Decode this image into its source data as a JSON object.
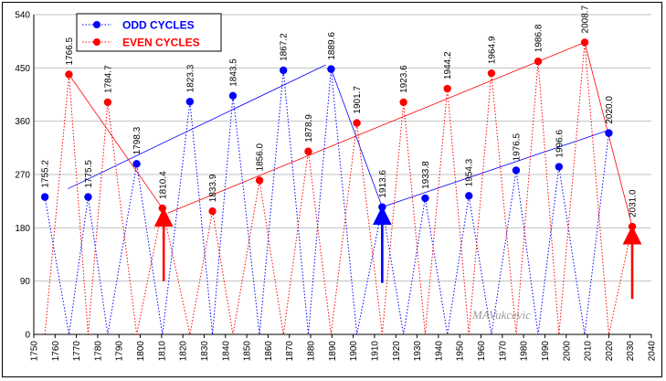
{
  "chart_data": {
    "type": "line",
    "title": "",
    "xlabel": "",
    "ylabel": "",
    "xlim": [
      1750,
      2040
    ],
    "ylim": [
      0,
      540
    ],
    "x_ticks": [
      1750,
      1760,
      1770,
      1780,
      1790,
      1800,
      1810,
      1820,
      1830,
      1840,
      1850,
      1860,
      1870,
      1880,
      1890,
      1900,
      1910,
      1920,
      1930,
      1940,
      1950,
      1960,
      1970,
      1980,
      1990,
      2000,
      2010,
      2020,
      2030,
      2040
    ],
    "y_ticks": [
      0,
      90,
      180,
      270,
      360,
      450,
      540
    ],
    "grid": "horizontal",
    "legend_position": "top-left",
    "series": [
      {
        "name": "ODD CYCLES",
        "color": "#0000ff",
        "points": [
          {
            "x": 1755.2,
            "y": 232,
            "label": "1755.2"
          },
          {
            "x": 1775.5,
            "y": 232,
            "label": "1775.5"
          },
          {
            "x": 1798.3,
            "y": 288,
            "label": "1798.3"
          },
          {
            "x": 1823.3,
            "y": 393,
            "label": "1823.3"
          },
          {
            "x": 1843.5,
            "y": 403,
            "label": "1843.5"
          },
          {
            "x": 1867.2,
            "y": 446,
            "label": "1867.2"
          },
          {
            "x": 1889.6,
            "y": 448,
            "label": "1889.6"
          },
          {
            "x": 1913.6,
            "y": 215,
            "label": "1913.6"
          },
          {
            "x": 1933.8,
            "y": 230,
            "label": "1933.8"
          },
          {
            "x": 1954.3,
            "y": 234,
            "label": "1954.3"
          },
          {
            "x": 1976.5,
            "y": 277,
            "label": "1976.5"
          },
          {
            "x": 1996.6,
            "y": 283,
            "label": "1996.6"
          },
          {
            "x": 2020.0,
            "y": 340,
            "label": "2020.0"
          }
        ],
        "zigzag_path": [
          [
            1755.2,
            232
          ],
          [
            1766.5,
            0
          ],
          [
            1775.5,
            232
          ],
          [
            1784.7,
            0
          ],
          [
            1798.3,
            288
          ],
          [
            1810.4,
            0
          ],
          [
            1823.3,
            393
          ],
          [
            1833.9,
            0
          ],
          [
            1843.5,
            403
          ],
          [
            1856.0,
            0
          ],
          [
            1867.2,
            446
          ],
          [
            1878.9,
            0
          ],
          [
            1889.6,
            448
          ],
          [
            1901.7,
            0
          ],
          [
            1913.6,
            215
          ],
          [
            1923.6,
            0
          ],
          [
            1933.8,
            230
          ],
          [
            1944.2,
            0
          ],
          [
            1954.3,
            234
          ],
          [
            1964.9,
            0
          ],
          [
            1976.5,
            277
          ],
          [
            1986.8,
            0
          ],
          [
            1996.6,
            283
          ],
          [
            2008.7,
            0
          ],
          [
            2020.0,
            340
          ]
        ]
      },
      {
        "name": "EVEN CYCLES",
        "color": "#ff0000",
        "points": [
          {
            "x": 1766.5,
            "y": 439,
            "label": "1766.5"
          },
          {
            "x": 1784.7,
            "y": 392,
            "label": "1784.7"
          },
          {
            "x": 1810.4,
            "y": 213,
            "label": "1810.4"
          },
          {
            "x": 1833.9,
            "y": 208,
            "label": "1833.9"
          },
          {
            "x": 1856.0,
            "y": 260,
            "label": "1856.0"
          },
          {
            "x": 1878.9,
            "y": 309,
            "label": "1878.9"
          },
          {
            "x": 1901.7,
            "y": 357,
            "label": "1901.7"
          },
          {
            "x": 1923.6,
            "y": 392,
            "label": "1923.6"
          },
          {
            "x": 1944.2,
            "y": 415,
            "label": "1944.2"
          },
          {
            "x": 1964.9,
            "y": 441,
            "label": "1964.9"
          },
          {
            "x": 1986.8,
            "y": 461,
            "label": "1986.8"
          },
          {
            "x": 2008.7,
            "y": 493,
            "label": "2008.7"
          },
          {
            "x": 2031.0,
            "y": 182,
            "label": "2031.0"
          }
        ],
        "zigzag_path": [
          [
            1755.2,
            0
          ],
          [
            1766.5,
            439
          ],
          [
            1775.5,
            0
          ],
          [
            1784.7,
            392
          ],
          [
            1798.3,
            0
          ],
          [
            1810.4,
            213
          ],
          [
            1823.3,
            0
          ],
          [
            1833.9,
            208
          ],
          [
            1843.5,
            0
          ],
          [
            1856.0,
            260
          ],
          [
            1867.2,
            0
          ],
          [
            1878.9,
            309
          ],
          [
            1889.6,
            0
          ],
          [
            1901.7,
            357
          ],
          [
            1913.6,
            0
          ],
          [
            1923.6,
            392
          ],
          [
            1933.8,
            0
          ],
          [
            1944.2,
            415
          ],
          [
            1954.3,
            0
          ],
          [
            1964.9,
            441
          ],
          [
            1976.5,
            0
          ],
          [
            1986.8,
            461
          ],
          [
            1996.6,
            0
          ],
          [
            2008.7,
            493
          ],
          [
            2020.0,
            0
          ],
          [
            2031.0,
            182
          ]
        ]
      }
    ],
    "trend_lines": [
      {
        "color": "#0000ff",
        "from": [
          1766,
          246
        ],
        "to": [
          1887,
          455
        ]
      },
      {
        "color": "#0000ff",
        "from": [
          1889.6,
          448
        ],
        "to": [
          1913.6,
          215
        ]
      },
      {
        "color": "#0000ff",
        "from": [
          1913.6,
          215
        ],
        "to": [
          2020,
          345
        ]
      },
      {
        "color": "#ff0000",
        "from": [
          1766.5,
          439
        ],
        "to": [
          1810.4,
          213
        ]
      },
      {
        "color": "#ff0000",
        "from": [
          1813,
          205
        ],
        "to": [
          2008.7,
          493
        ]
      },
      {
        "color": "#ff0000",
        "from": [
          2008.7,
          493
        ],
        "to": [
          2031.0,
          182
        ]
      }
    ],
    "arrows": [
      {
        "color": "#ff0000",
        "x": 1811,
        "y_from": 90,
        "y_to": 198
      },
      {
        "color": "#0000ff",
        "x": 1913.6,
        "y_from": 87,
        "y_to": 201
      },
      {
        "color": "#ff0000",
        "x": 2031,
        "y_from": 60,
        "y_to": 168
      }
    ],
    "watermark": "MAVukcevic"
  }
}
